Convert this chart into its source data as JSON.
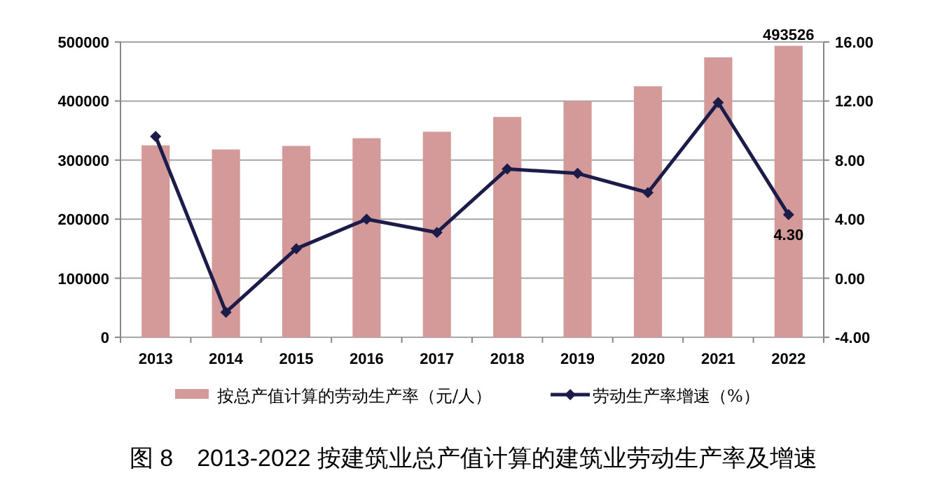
{
  "chart_data": {
    "type": "bar",
    "title": "图 8　2013-2022 按建筑业总产值计算的建筑业劳动生产率及增速",
    "categories": [
      "2013",
      "2014",
      "2015",
      "2016",
      "2017",
      "2018",
      "2019",
      "2020",
      "2021",
      "2022"
    ],
    "series": [
      {
        "name": "按总产值计算的劳动生产率（元/人）",
        "color": "#d49a9a",
        "values": [
          325000,
          318000,
          324000,
          337000,
          348000,
          373000,
          400000,
          425000,
          474000,
          493526
        ],
        "value_labels": [
          null,
          null,
          null,
          null,
          null,
          null,
          null,
          null,
          null,
          "493526"
        ]
      },
      {
        "name": "劳动生产率增速（%）",
        "type": "line",
        "axis": "y2",
        "color": "#1c1c4a",
        "values": [
          9.6,
          -2.3,
          2.0,
          4.0,
          3.1,
          7.4,
          7.1,
          5.8,
          11.9,
          4.3
        ],
        "value_labels": [
          null,
          null,
          null,
          null,
          null,
          null,
          null,
          null,
          null,
          "4.30"
        ]
      }
    ],
    "ylim": [
      0,
      500000
    ],
    "yticks": [
      0,
      100000,
      200000,
      300000,
      400000,
      500000
    ],
    "y2lim": [
      -4,
      16
    ],
    "y2ticks": [
      {
        "value": -4,
        "label": "-4.00"
      },
      {
        "value": 0,
        "label": "0.00"
      },
      {
        "value": 4,
        "label": "4.00"
      },
      {
        "value": 8,
        "label": "8.00"
      },
      {
        "value": 12,
        "label": "12.00"
      },
      {
        "value": 16,
        "label": "16.00"
      }
    ],
    "grid": "y",
    "legend": "bottom",
    "marker": "diamond",
    "line_style": "solid"
  }
}
